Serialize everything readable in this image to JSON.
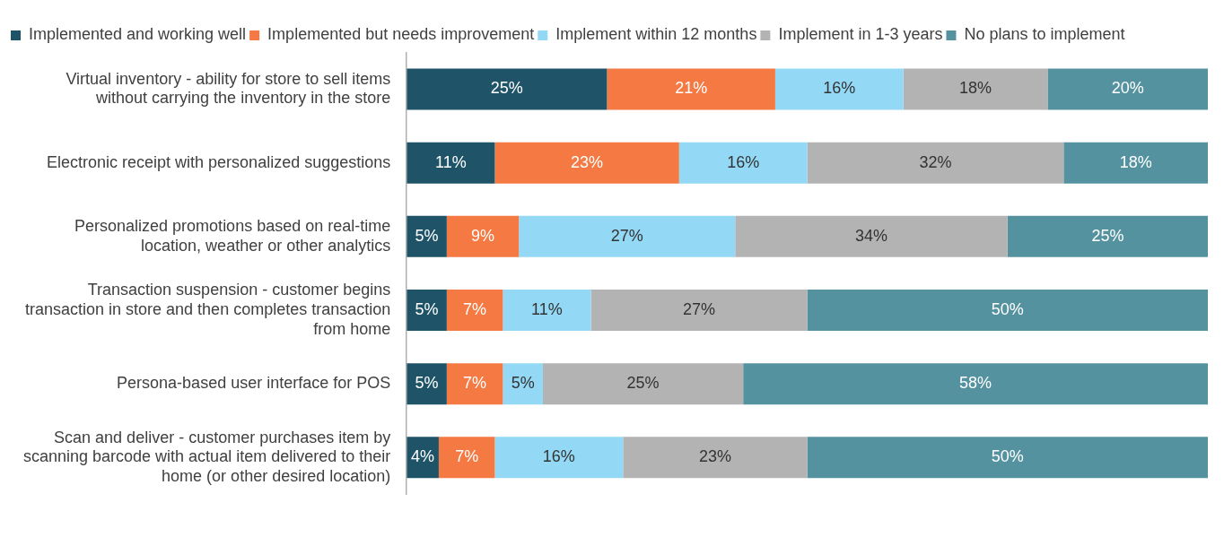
{
  "chart_data": {
    "type": "bar",
    "orientation": "horizontal",
    "stacked": true,
    "legend": "top",
    "grid": false,
    "tick_labels": "y",
    "categories": [
      "Virtual inventory - ability for store to sell items without carrying the inventory in the store",
      "Electronic receipt with personalized suggestions",
      "Personalized promotions based on real-time location, weather or other analytics",
      "Transaction suspension - customer begins transaction in store and then completes transaction from home",
      "Persona-based user interface for POS",
      "Scan and deliver - customer purchases item by scanning barcode with actual item delivered to their home (or other desired location)"
    ],
    "series": [
      {
        "name": "Implemented and working well",
        "color": "#1f5468",
        "values": [
          25,
          11,
          5,
          5,
          5,
          4
        ],
        "value_labels": [
          "25%",
          "11%",
          "5%",
          "5%",
          "5%",
          "4%"
        ]
      },
      {
        "name": "Implemented but needs improvement",
        "color": "#f47942",
        "values": [
          21,
          23,
          9,
          7,
          7,
          7
        ],
        "value_labels": [
          "21%",
          "23%",
          "9%",
          "7%",
          "7%",
          "7%"
        ]
      },
      {
        "name": "Implement within 12 months",
        "color": "#93d9f5",
        "values": [
          16,
          16,
          27,
          11,
          5,
          16
        ],
        "value_labels": [
          "16%",
          "16%",
          "27%",
          "11%",
          "5%",
          "16%"
        ]
      },
      {
        "name": "Implement in 1-3 years",
        "color": "#b3b3b3",
        "values": [
          18,
          32,
          34,
          27,
          25,
          23
        ],
        "value_labels": [
          "18%",
          "32%",
          "34%",
          "27%",
          "25%",
          "23%"
        ]
      },
      {
        "name": "No plans to implement",
        "color": "#5592a0",
        "values": [
          20,
          18,
          25,
          50,
          58,
          50
        ],
        "value_labels": [
          "20%",
          "18%",
          "25%",
          "50%",
          "58%",
          "50%"
        ]
      }
    ]
  }
}
